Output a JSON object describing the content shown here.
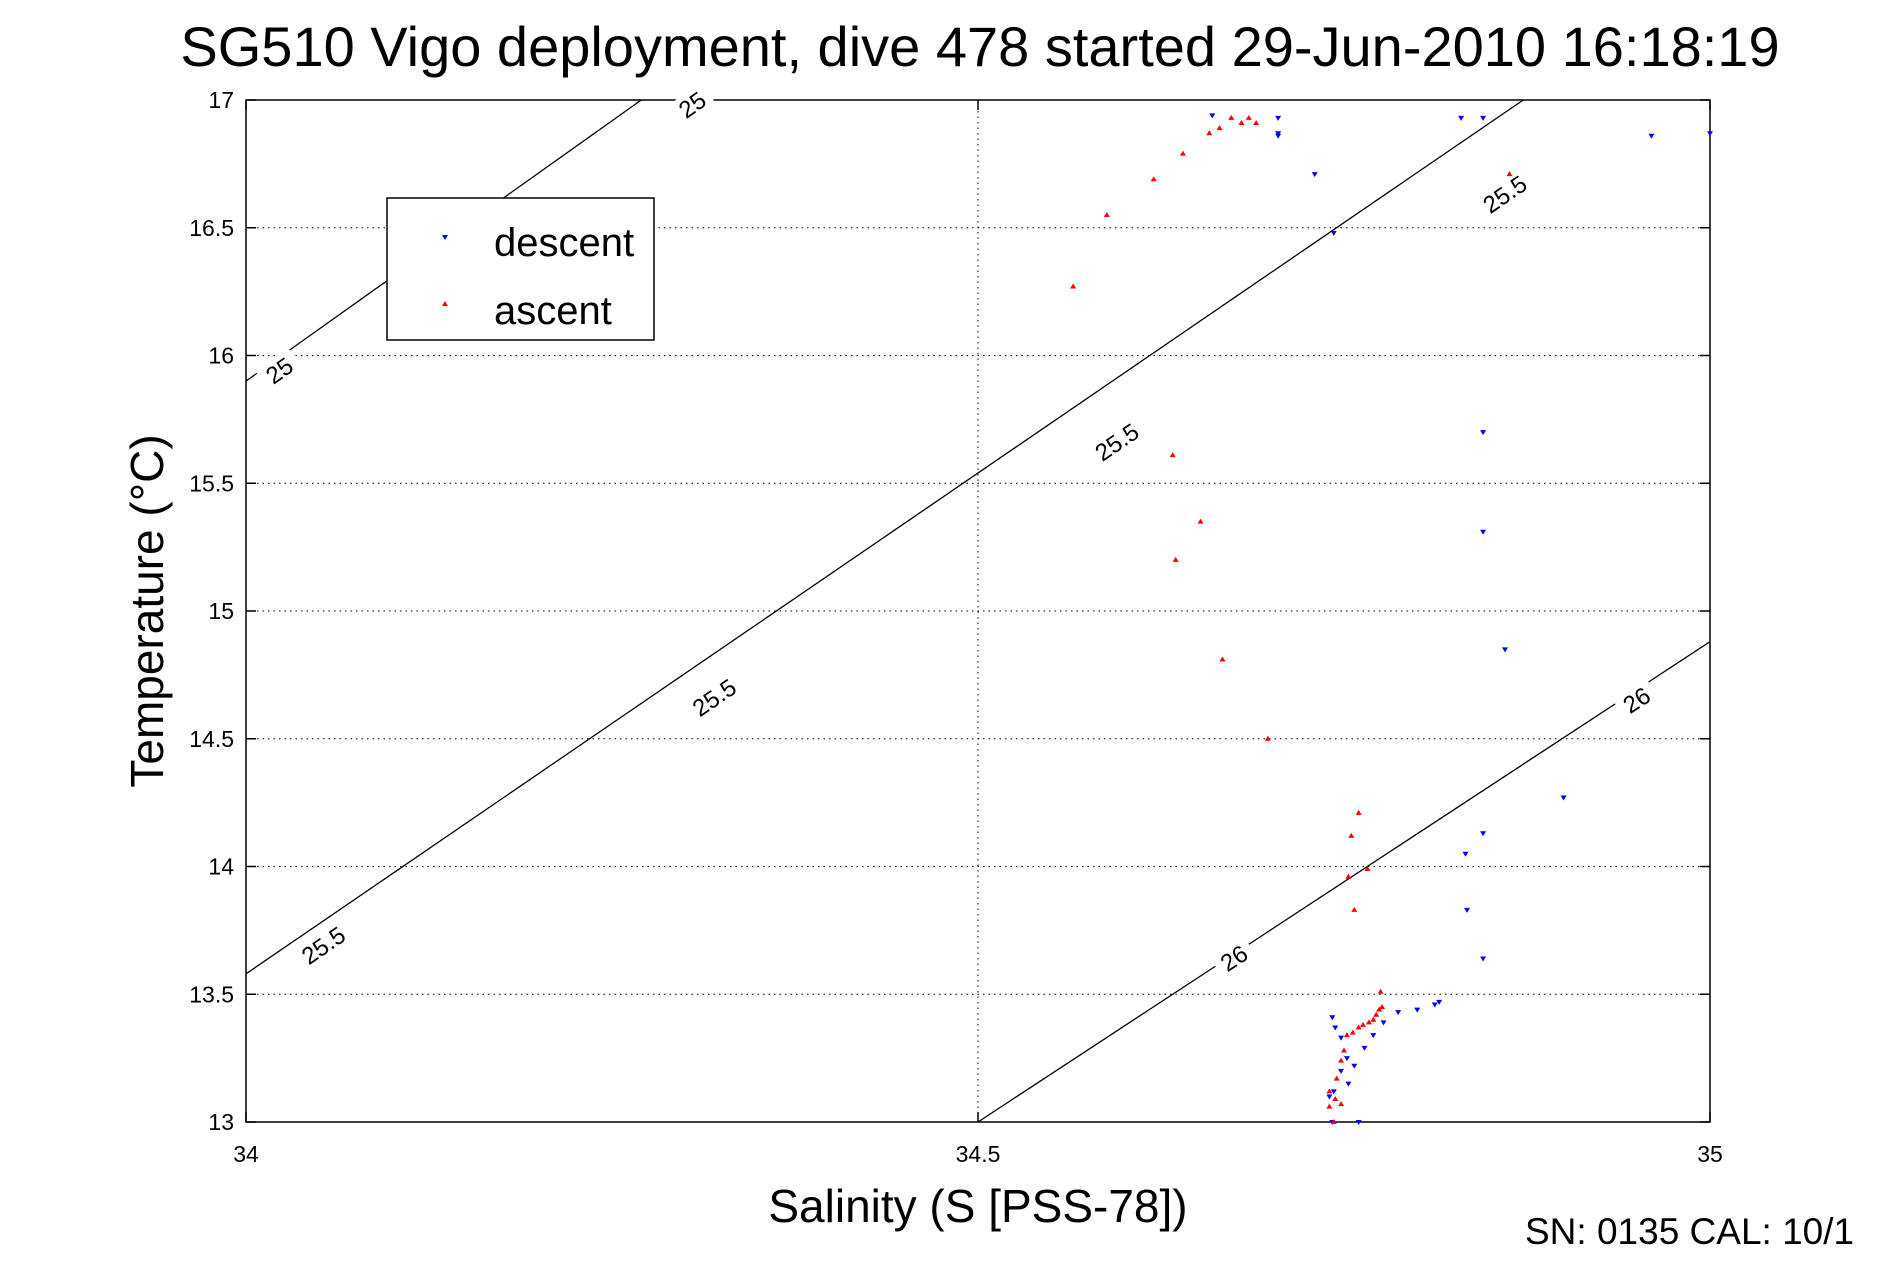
{
  "chart_data": {
    "type": "scatter",
    "title": "SG510 Vigo deployment, dive 478 started 29-Jun-2010 16:18:19",
    "xlabel": "Salinity (S [PSS-78])",
    "ylabel": "Temperature (°C)",
    "xlim": [
      34,
      35
    ],
    "ylim": [
      13,
      17
    ],
    "x_ticks": [
      "34",
      "34.5",
      "35"
    ],
    "y_ticks": [
      "13",
      "13.5",
      "14",
      "14.5",
      "15",
      "15.5",
      "16",
      "16.5",
      "17"
    ],
    "grid": true,
    "legend_position": "top-left",
    "footer": "SN: 0135  CAL: 10/1",
    "series": [
      {
        "name": "descent",
        "marker": "triangle-down",
        "color": "#0000ff",
        "x": [
          34.66,
          34.705,
          34.705,
          34.705,
          34.73,
          34.743,
          34.83,
          34.845,
          34.845,
          34.845,
          34.86,
          34.9,
          34.96,
          35.0,
          34.815,
          34.753,
          34.757,
          34.764,
          34.77,
          34.777,
          34.787,
          34.8,
          34.812,
          34.845,
          34.834,
          34.833,
          34.845,
          34.74,
          34.743,
          34.748,
          34.752,
          34.748,
          34.744,
          34.742,
          34.742,
          34.76
        ],
        "y": [
          16.94,
          16.93,
          16.87,
          16.86,
          16.71,
          16.48,
          16.93,
          16.93,
          15.7,
          15.31,
          14.85,
          14.27,
          16.86,
          16.87,
          13.47,
          13.15,
          13.22,
          13.29,
          13.34,
          13.39,
          13.43,
          13.44,
          13.46,
          13.64,
          13.83,
          14.05,
          14.13,
          13.1,
          13.12,
          13.2,
          13.25,
          13.33,
          13.37,
          13.41,
          13.0,
          13.0
        ]
      },
      {
        "name": "ascent",
        "marker": "triangle-up",
        "color": "#ff0000",
        "x": [
          34.565,
          34.588,
          34.62,
          34.64,
          34.658,
          34.665,
          34.673,
          34.68,
          34.685,
          34.69,
          34.863,
          34.633,
          34.652,
          34.635,
          34.667,
          34.698,
          34.76,
          34.755,
          34.766,
          34.753,
          34.757,
          34.748,
          34.744,
          34.74,
          34.74,
          34.745,
          34.748,
          34.75,
          34.752,
          34.756,
          34.76,
          34.763,
          34.767,
          34.77,
          34.772,
          34.774,
          34.776,
          34.775,
          34.743
        ],
        "y": [
          16.27,
          16.55,
          16.69,
          16.79,
          16.87,
          16.89,
          16.93,
          16.91,
          16.93,
          16.91,
          16.71,
          15.61,
          15.35,
          15.2,
          14.81,
          14.5,
          14.21,
          14.12,
          13.99,
          13.96,
          13.83,
          13.07,
          13.09,
          13.12,
          13.06,
          13.17,
          13.24,
          13.28,
          13.34,
          13.35,
          13.37,
          13.38,
          13.39,
          13.4,
          13.42,
          13.44,
          13.45,
          13.51,
          13.0
        ]
      }
    ],
    "contours": [
      {
        "label": "25",
        "x": [
          34.0,
          34.27
        ],
        "y": [
          15.9,
          17.0
        ]
      },
      {
        "label": "25.5",
        "x": [
          34.0,
          35.0
        ],
        "y": [
          13.58,
          17.5
        ]
      },
      {
        "label": "26",
        "x": [
          34.5,
          35.0
        ],
        "y": [
          13.0,
          14.88
        ]
      }
    ],
    "contour_labels": [
      {
        "text": "25",
        "x": 34.305,
        "y": 16.98
      },
      {
        "text": "25",
        "x": 34.023,
        "y": 15.94
      },
      {
        "text": "25.5",
        "x": 34.86,
        "y": 16.63
      },
      {
        "text": "25.5",
        "x": 34.595,
        "y": 15.66
      },
      {
        "text": "25.5",
        "x": 34.32,
        "y": 14.66
      },
      {
        "text": "25.5",
        "x": 34.053,
        "y": 13.69
      },
      {
        "text": "26",
        "x": 34.95,
        "y": 14.65
      },
      {
        "text": "26",
        "x": 34.675,
        "y": 13.64
      }
    ]
  }
}
